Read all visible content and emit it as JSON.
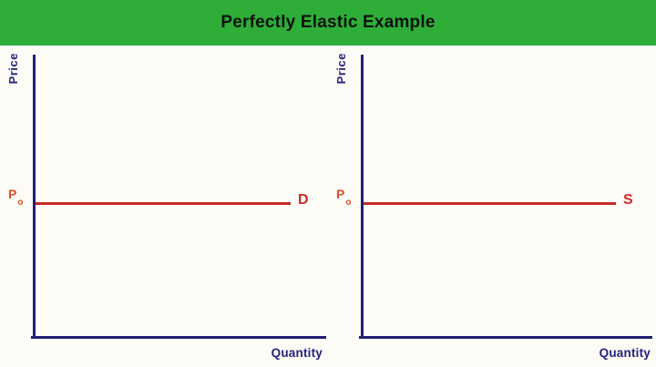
{
  "title_banner": {
    "title": "Perfectly Elastic Example"
  },
  "colors": {
    "banner_green": "#2ead38",
    "axis_navy": "#201f72",
    "label_navy": "#25237e",
    "curve_red": "#c62b24",
    "price_level_red": "#e14e2b",
    "title_text": "#0b120b",
    "background": "#fcfbf6"
  },
  "charts": [
    {
      "y_axis_label": "Price",
      "x_axis_label": "Quantity",
      "price_level": {
        "base": "P",
        "sub": "o"
      },
      "curve_label": "D"
    },
    {
      "y_axis_label": "Price",
      "x_axis_label": "Quantity",
      "price_level": {
        "base": "P",
        "sub": "o"
      },
      "curve_label": "S"
    }
  ],
  "chart_data": [
    {
      "type": "line",
      "title": "Perfectly Elastic Example",
      "xlabel": "Quantity",
      "ylabel": "Price",
      "grid": false,
      "axis_tick_labels": [],
      "annotations": [
        "Po"
      ],
      "series": [
        {
          "name": "D",
          "shape": "horizontal line",
          "y_constant": "Po",
          "description": "Demand curve drawn flat at price Po across all quantities (perfectly elastic demand)"
        }
      ]
    },
    {
      "type": "line",
      "title": "Perfectly Elastic Example",
      "xlabel": "Quantity",
      "ylabel": "Price",
      "grid": false,
      "axis_tick_labels": [],
      "annotations": [
        "Po"
      ],
      "series": [
        {
          "name": "S",
          "shape": "horizontal line",
          "y_constant": "Po",
          "description": "Supply curve drawn flat at price Po across all quantities (perfectly elastic supply)"
        }
      ]
    }
  ]
}
